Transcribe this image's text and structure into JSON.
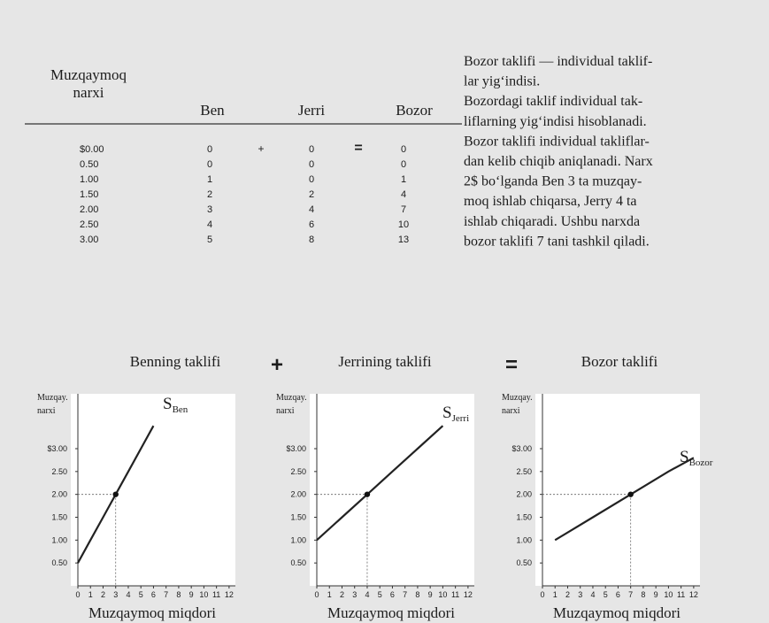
{
  "table": {
    "header": {
      "price": [
        "Muzqaymoq",
        "narxi"
      ],
      "columns": [
        "Ben",
        "Jerri",
        "Bozor"
      ]
    },
    "operators": [
      "+",
      "="
    ],
    "rows": [
      [
        "$0.00",
        "0",
        "0",
        "0"
      ],
      [
        "0.50",
        "0",
        "0",
        "0"
      ],
      [
        "1.00",
        "1",
        "0",
        "1"
      ],
      [
        "1.50",
        "2",
        "2",
        "4"
      ],
      [
        "2.00",
        "3",
        "4",
        "7"
      ],
      [
        "2.50",
        "4",
        "6",
        "10"
      ],
      [
        "3.00",
        "5",
        "8",
        "13"
      ]
    ]
  },
  "text": [
    "Bozor taklifi — individual taklif-",
    "lar yig‘indisi.",
    "Bozordagi taklif individual tak-",
    "liflarning yig‘indisi hisoblanadi.",
    "Bozor taklifi individual takliflar-",
    "dan kelib chiqib aniqlanadi. Narx",
    "2$ bo‘lganda Ben 3 ta muzqay-",
    "moq ishlab chiqarsa, Jerry 4 ta",
    "ishlab chiqaradi. Ushbu narxda",
    "bozor taklifi 7 tani tashkil qiladi."
  ],
  "chart_operators": [
    "+",
    "="
  ],
  "chart_data": [
    {
      "type": "line",
      "title": "Benning taklifi",
      "ylabel": [
        "Muzqay.",
        "narxi"
      ],
      "xlabel": "Muzqaymoq miqdori",
      "curve_label": {
        "main": "S",
        "sub": "Ben"
      },
      "color": "#222222",
      "x": [
        0,
        1,
        2,
        3,
        4,
        5,
        6
      ],
      "values": [
        0.5,
        1,
        1.5,
        2,
        2.5,
        3,
        3.5
      ],
      "highlight": {
        "x": 3,
        "y": 2
      },
      "xlim": [
        0,
        12.5
      ],
      "ylim": [
        0,
        4.2
      ],
      "xticks": [
        0,
        1,
        2,
        3,
        4,
        5,
        6,
        7,
        8,
        9,
        10,
        11,
        12
      ],
      "yticks": [
        {
          "value": 0.5,
          "label": "0.50"
        },
        {
          "value": 1,
          "label": "1.00"
        },
        {
          "value": 1.5,
          "label": "1.50"
        },
        {
          "value": 2,
          "label": "2.00"
        },
        {
          "value": 2.5,
          "label": "2.50"
        },
        {
          "value": 3,
          "label": "$3.00"
        }
      ]
    },
    {
      "type": "line",
      "title": "Jerrining taklifi",
      "ylabel": [
        "Muzqay.",
        "narxi"
      ],
      "xlabel": "Muzqaymoq miqdori",
      "curve_label": {
        "main": "S",
        "sub": "Jerri"
      },
      "color": "#222222",
      "x": [
        0,
        2,
        4,
        6,
        8,
        10
      ],
      "values": [
        1,
        1.5,
        2,
        2.5,
        3,
        3.5
      ],
      "highlight": {
        "x": 4,
        "y": 2
      },
      "xlim": [
        0,
        12.5
      ],
      "ylim": [
        0,
        4.2
      ],
      "xticks": [
        0,
        1,
        2,
        3,
        4,
        5,
        6,
        7,
        8,
        9,
        10,
        11,
        12
      ],
      "yticks": [
        {
          "value": 0.5,
          "label": "0.50"
        },
        {
          "value": 1,
          "label": "1.00"
        },
        {
          "value": 1.5,
          "label": "1.50"
        },
        {
          "value": 2,
          "label": "2.00"
        },
        {
          "value": 2.5,
          "label": "2.50"
        },
        {
          "value": 3,
          "label": "$3.00"
        }
      ]
    },
    {
      "type": "line",
      "title": "Bozor taklifi",
      "ylabel": [
        "Muzqay.",
        "narxi"
      ],
      "xlabel": "Muzqaymoq miqdori",
      "curve_label": {
        "main": "S",
        "sub": "Bozor"
      },
      "color": "#222222",
      "x": [
        1,
        4,
        7,
        10,
        12
      ],
      "values": [
        1,
        1.5,
        2,
        2.5,
        2.8
      ],
      "highlight": {
        "x": 7,
        "y": 2
      },
      "xlim": [
        0,
        12.5
      ],
      "ylim": [
        0,
        4.2
      ],
      "xticks": [
        0,
        1,
        2,
        3,
        4,
        5,
        6,
        7,
        8,
        9,
        10,
        11,
        12
      ],
      "yticks": [
        {
          "value": 0.5,
          "label": "0.50"
        },
        {
          "value": 1,
          "label": "1.00"
        },
        {
          "value": 1.5,
          "label": "1.50"
        },
        {
          "value": 2,
          "label": "2.00"
        },
        {
          "value": 2.5,
          "label": "2.50"
        },
        {
          "value": 3,
          "label": "$3.00"
        }
      ]
    }
  ]
}
